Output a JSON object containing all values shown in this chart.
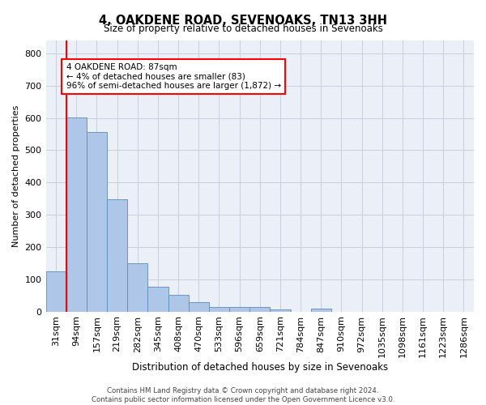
{
  "title": "4, OAKDENE ROAD, SEVENOAKS, TN13 3HH",
  "subtitle": "Size of property relative to detached houses in Sevenoaks",
  "xlabel": "Distribution of detached houses by size in Sevenoaks",
  "ylabel": "Number of detached properties",
  "footer_line1": "Contains HM Land Registry data © Crown copyright and database right 2024.",
  "footer_line2": "Contains public sector information licensed under the Open Government Licence v3.0.",
  "bar_labels": [
    "31sqm",
    "94sqm",
    "157sqm",
    "219sqm",
    "282sqm",
    "345sqm",
    "408sqm",
    "470sqm",
    "533sqm",
    "596sqm",
    "659sqm",
    "721sqm",
    "784sqm",
    "847sqm",
    "910sqm",
    "972sqm",
    "1035sqm",
    "1098sqm",
    "1161sqm",
    "1223sqm",
    "1286sqm"
  ],
  "bar_values": [
    125,
    602,
    557,
    348,
    150,
    77,
    52,
    30,
    15,
    13,
    13,
    7,
    0,
    8,
    0,
    0,
    0,
    0,
    0,
    0,
    0
  ],
  "bar_color": "#aec6e8",
  "bar_edge_color": "#5b8db8",
  "grid_color": "#c8d0dc",
  "bg_color": "#eaeff8",
  "annotation_text": "4 OAKDENE ROAD: 87sqm\n← 4% of detached houses are smaller (83)\n96% of semi-detached houses are larger (1,872) →",
  "annotation_box_color": "white",
  "annotation_box_edge_color": "red",
  "vline_color": "red",
  "ylim": [
    0,
    840
  ],
  "yticks": [
    0,
    100,
    200,
    300,
    400,
    500,
    600,
    700,
    800
  ]
}
